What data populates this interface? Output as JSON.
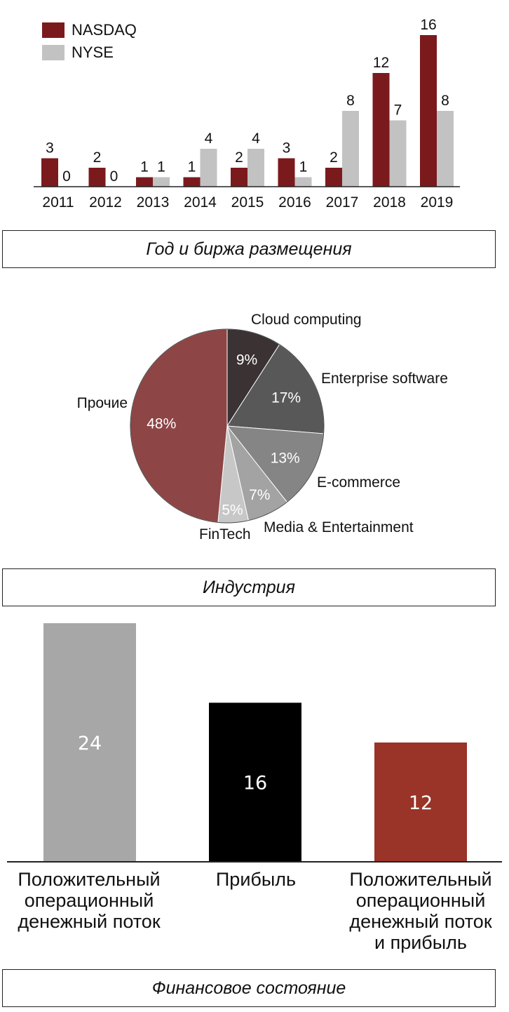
{
  "chart_data": [
    {
      "type": "bar",
      "categories": [
        "2011",
        "2012",
        "2013",
        "2014",
        "2015",
        "2016",
        "2017",
        "2018",
        "2019"
      ],
      "series": [
        {
          "name": "NASDAQ",
          "color": "#7b1a1d",
          "values": [
            3,
            2,
            1,
            1,
            2,
            3,
            2,
            12,
            16
          ]
        },
        {
          "name": "NYSE",
          "color": "#c2c2c2",
          "values": [
            0,
            0,
            1,
            4,
            4,
            1,
            8,
            7,
            8
          ]
        }
      ],
      "ylim": [
        0,
        16
      ],
      "grid": false,
      "legend": "top-left",
      "caption": "Год и биржа размещения"
    },
    {
      "type": "pie",
      "slices": [
        {
          "label": "Cloud computing",
          "value": 9,
          "display": "9%",
          "color": "#3a3233"
        },
        {
          "label": "Enterprise software",
          "value": 17,
          "display": "17%",
          "color": "#585858"
        },
        {
          "label": "E-commerce",
          "value": 13,
          "display": "13%",
          "color": "#858585"
        },
        {
          "label": "Media & Entertainment",
          "value": 7,
          "display": "7%",
          "color": "#a3a3a3"
        },
        {
          "label": "FinTech",
          "value": 5,
          "display": "5%",
          "color": "#c7c7c7"
        },
        {
          "label": "Прочие",
          "value": 48,
          "display": "48%",
          "color": "#8e4545"
        }
      ],
      "caption": "Индустрия"
    },
    {
      "type": "bar",
      "categories": [
        "Положительный\nоперационный\nденежный поток",
        "Прибыль",
        "Положительный\nоперационный\nденежный поток\nи прибыль"
      ],
      "values": [
        24,
        16,
        12
      ],
      "colors": [
        "#a7a7a7",
        "#000000",
        "#9a3328"
      ],
      "ylim": [
        0,
        24
      ],
      "caption": "Финансовое состояние"
    }
  ]
}
